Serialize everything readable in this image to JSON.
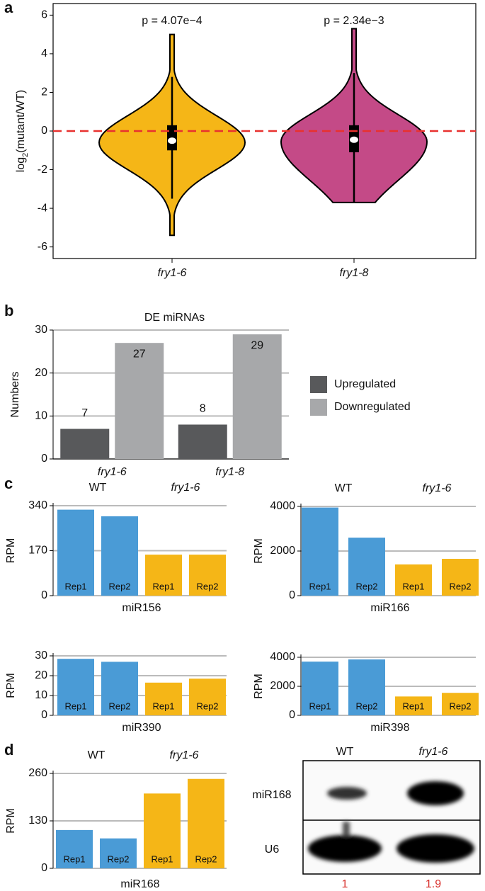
{
  "panel_labels": [
    "a",
    "b",
    "c",
    "d"
  ],
  "chart_data": [
    {
      "type": "violin",
      "categories": [
        "fry1-6",
        "fry1-8"
      ],
      "y_label": [
        "log",
        "2",
        "(mutant/WT)"
      ],
      "ylim": [
        -6.6,
        6.6
      ],
      "yticks": [
        -6,
        -4,
        -2,
        0,
        2,
        4,
        6
      ],
      "reference_line": 0,
      "reference_color": "#e8312f",
      "annotations": [
        "p = 4.07e−4",
        "p = 2.34e−3"
      ],
      "violins": [
        {
          "color": "#f5b617",
          "min": -5.4,
          "max": 5.0,
          "whisker_low": -3.5,
          "whisker_high": 2.8,
          "q1": -1.0,
          "median": -0.5,
          "q3": 0.3
        },
        {
          "color": "#c44a87",
          "min": -3.7,
          "max": 5.3,
          "whisker_low": -3.7,
          "whisker_high": 3.0,
          "q1": -1.1,
          "median": -0.45,
          "q3": 0.3
        }
      ]
    },
    {
      "type": "grouped_bar",
      "title": "DE miRNAs",
      "y_label": "Numbers",
      "categories": [
        "fry1-6",
        "fry1-8"
      ],
      "ylim": [
        0,
        30
      ],
      "yticks": [
        0,
        10,
        20,
        30
      ],
      "grid": true,
      "series": [
        {
          "name": "Upregulated",
          "color": "#58595b",
          "values": [
            7,
            8
          ]
        },
        {
          "name": "Downregulated",
          "color": "#a7a8aa",
          "values": [
            27,
            29
          ]
        }
      ]
    },
    {
      "type": "bar",
      "x_label": "miR156",
      "y_label": "RPM",
      "group_labels": [
        "WT",
        "fry1-6"
      ],
      "categories": [
        "Rep1",
        "Rep2",
        "Rep1",
        "Rep2"
      ],
      "colors": [
        "#4a9bd6",
        "#4a9bd6",
        "#f5b617",
        "#f5b617"
      ],
      "values": [
        325,
        300,
        155,
        155
      ],
      "ylim": [
        0,
        340
      ],
      "yticks": [
        0,
        170,
        340
      ],
      "grid": true
    },
    {
      "type": "bar",
      "x_label": "miR166",
      "y_label": "RPM",
      "group_labels": [
        "WT",
        "fry1-6"
      ],
      "categories": [
        "Rep1",
        "Rep2",
        "Rep1",
        "Rep2"
      ],
      "colors": [
        "#4a9bd6",
        "#4a9bd6",
        "#f5b617",
        "#f5b617"
      ],
      "values": [
        3950,
        2600,
        1400,
        1650
      ],
      "ylim": [
        0,
        4000
      ],
      "yticks": [
        0,
        2000,
        4000
      ],
      "grid": true
    },
    {
      "type": "bar",
      "x_label": "miR390",
      "y_label": "RPM",
      "categories": [
        "Rep1",
        "Rep2",
        "Rep1",
        "Rep2"
      ],
      "colors": [
        "#4a9bd6",
        "#4a9bd6",
        "#f5b617",
        "#f5b617"
      ],
      "values": [
        28.5,
        27,
        16.5,
        18.5
      ],
      "ylim": [
        0,
        30
      ],
      "yticks": [
        0,
        10,
        20,
        30
      ],
      "grid": true
    },
    {
      "type": "bar",
      "x_label": "miR398",
      "y_label": "RPM",
      "categories": [
        "Rep1",
        "Rep2",
        "Rep1",
        "Rep2"
      ],
      "colors": [
        "#4a9bd6",
        "#4a9bd6",
        "#f5b617",
        "#f5b617"
      ],
      "values": [
        3700,
        3850,
        1300,
        1550
      ],
      "ylim": [
        0,
        4000
      ],
      "yticks": [
        0,
        2000,
        4000
      ],
      "grid": true
    },
    {
      "type": "bar",
      "x_label": "miR168",
      "y_label": "RPM",
      "group_labels": [
        "WT",
        "fry1-6"
      ],
      "categories": [
        "Rep1",
        "Rep2",
        "Rep1",
        "Rep2"
      ],
      "colors": [
        "#4a9bd6",
        "#4a9bd6",
        "#f5b617",
        "#f5b617"
      ],
      "values": [
        105,
        82,
        205,
        245
      ],
      "ylim": [
        0,
        260
      ],
      "yticks": [
        0,
        130,
        260
      ],
      "grid": true
    }
  ],
  "blot": {
    "columns": [
      "WT",
      "fry1-6"
    ],
    "rows": [
      "miR168",
      "U6"
    ],
    "quantification": [
      1,
      1.9
    ]
  }
}
